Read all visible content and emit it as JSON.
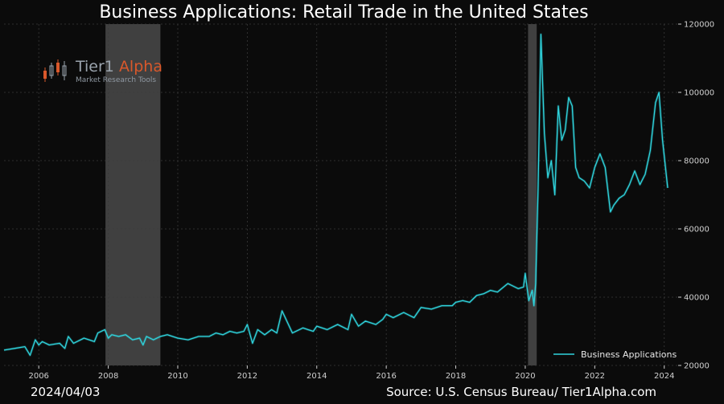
{
  "chart_data": {
    "type": "line",
    "title": "Business Applications: Retail Trade in the United States",
    "xlabel": "",
    "ylabel": "",
    "xlim": [
      2005.0,
      2024.4
    ],
    "ylim": [
      20000,
      120000
    ],
    "y_ticks": [
      20000,
      40000,
      60000,
      80000,
      100000,
      120000
    ],
    "y_tick_labels": [
      "20000",
      "40000",
      "60000",
      "80000",
      "100000",
      "120000"
    ],
    "x_ticks": [
      2006,
      2008,
      2010,
      2012,
      2014,
      2016,
      2018,
      2020,
      2022,
      2024
    ],
    "x_tick_labels": [
      "2006",
      "2008",
      "2010",
      "2012",
      "2014",
      "2016",
      "2018",
      "2020",
      "2022",
      "2024"
    ],
    "y_axis_side": "right",
    "grid": true,
    "legend_position": "bottom-right",
    "recession_shading": [
      [
        2007.92,
        2009.5
      ],
      [
        2020.08,
        2020.33
      ]
    ],
    "series": [
      {
        "name": "Business Applications",
        "color": "#2fd3dc",
        "x": [
          2005.0,
          2005.3,
          2005.6,
          2005.75,
          2005.9,
          2006.0,
          2006.1,
          2006.3,
          2006.6,
          2006.75,
          2006.85,
          2007.0,
          2007.3,
          2007.6,
          2007.7,
          2007.9,
          2008.0,
          2008.1,
          2008.3,
          2008.5,
          2008.7,
          2008.9,
          2009.0,
          2009.1,
          2009.3,
          2009.5,
          2009.7,
          2010.0,
          2010.3,
          2010.6,
          2010.9,
          2011.1,
          2011.3,
          2011.5,
          2011.7,
          2011.9,
          2012.0,
          2012.15,
          2012.3,
          2012.5,
          2012.7,
          2012.85,
          2013.0,
          2013.3,
          2013.6,
          2013.9,
          2014.0,
          2014.3,
          2014.6,
          2014.9,
          2015.0,
          2015.2,
          2015.4,
          2015.7,
          2015.9,
          2016.0,
          2016.2,
          2016.5,
          2016.8,
          2017.0,
          2017.3,
          2017.6,
          2017.9,
          2018.0,
          2018.2,
          2018.4,
          2018.6,
          2018.8,
          2019.0,
          2019.2,
          2019.5,
          2019.8,
          2019.95,
          2020.0,
          2020.1,
          2020.2,
          2020.25,
          2020.3,
          2020.37,
          2020.45,
          2020.55,
          2020.65,
          2020.75,
          2020.85,
          2020.95,
          2021.05,
          2021.15,
          2021.25,
          2021.35,
          2021.45,
          2021.55,
          2021.7,
          2021.85,
          2022.0,
          2022.15,
          2022.3,
          2022.45,
          2022.55,
          2022.7,
          2022.85,
          2023.0,
          2023.15,
          2023.3,
          2023.45,
          2023.6,
          2023.75,
          2023.85,
          2023.95,
          2024.1
        ],
        "y": [
          24500,
          25000,
          25500,
          23000,
          27500,
          26000,
          27000,
          26000,
          26500,
          25000,
          28500,
          26500,
          28000,
          27000,
          29500,
          30500,
          28000,
          29000,
          28500,
          29000,
          27500,
          28000,
          26000,
          28500,
          27500,
          28500,
          29000,
          28000,
          27500,
          28500,
          28500,
          29500,
          29000,
          30000,
          29500,
          30000,
          32000,
          26500,
          30500,
          29000,
          30500,
          29500,
          36000,
          29500,
          31000,
          30000,
          31500,
          30500,
          32000,
          30500,
          35000,
          31500,
          33000,
          32000,
          33500,
          35000,
          34000,
          35500,
          34000,
          37000,
          36500,
          37500,
          37500,
          38500,
          39000,
          38500,
          40500,
          41000,
          42000,
          41500,
          44000,
          42500,
          43000,
          47000,
          39000,
          42000,
          37500,
          44000,
          72000,
          117000,
          88000,
          75000,
          80000,
          70000,
          96000,
          86000,
          89000,
          98500,
          96000,
          78000,
          75000,
          74000,
          72000,
          78000,
          82000,
          78000,
          65000,
          67000,
          69000,
          70000,
          73000,
          77000,
          73000,
          76000,
          83000,
          97000,
          100000,
          86000,
          72000
        ]
      }
    ]
  },
  "footer": {
    "date": "2024/04/03",
    "source": "Source: U.S. Census Bureau/ Tier1Alpha.com"
  },
  "logo": {
    "name_part1": "Tier1",
    "name_part2": "Alpha",
    "tagline": "Market Research Tools",
    "colors": {
      "up": "#9aa3ad",
      "down": "#d9582b"
    }
  },
  "colors": {
    "background": "#0b0b0b",
    "grid": "#3a3a3a",
    "recession": "#6e6e6e",
    "text": "#ffffff"
  }
}
